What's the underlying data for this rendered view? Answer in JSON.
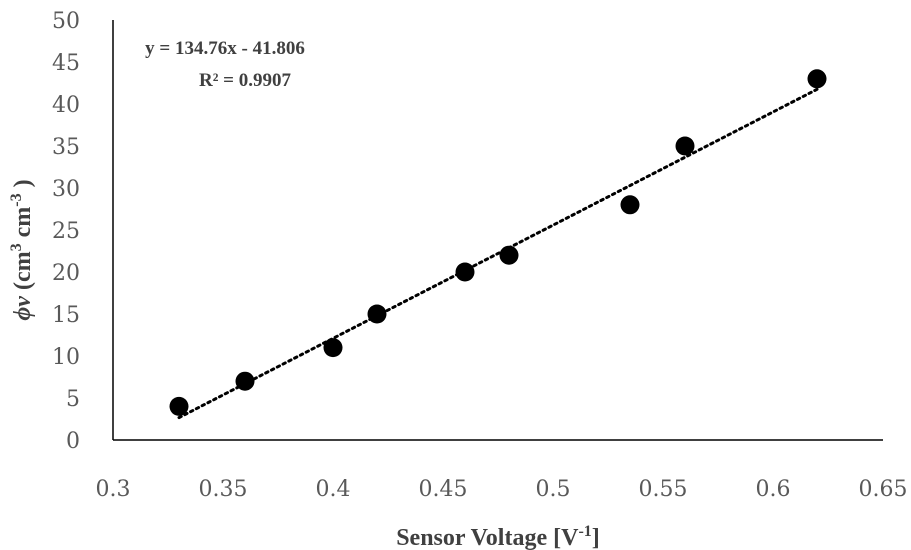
{
  "chart_data": {
    "type": "scatter",
    "xlabel": {
      "base": "Sensor Voltage [V",
      "sup": "-1",
      "end": "]"
    },
    "ylabel": {
      "sym": "ϕv",
      "a": " (cm",
      "s1": "3",
      "b": " cm",
      "s2": "-3",
      "c": " )"
    },
    "xlim": [
      0.3,
      0.65
    ],
    "ylim": [
      0,
      50
    ],
    "xticks": [
      0.3,
      0.35,
      0.4,
      0.45,
      0.5,
      0.55,
      0.6,
      0.65
    ],
    "xtick_labels": [
      "0.3",
      "0.35",
      "0.4",
      "0.45",
      "0.5",
      "0.55",
      "0.6",
      "0.65"
    ],
    "yticks": [
      0,
      5,
      10,
      15,
      20,
      25,
      30,
      35,
      40,
      45,
      50
    ],
    "ytick_labels": [
      "0",
      "5",
      "10",
      "15",
      "20",
      "25",
      "30",
      "35",
      "40",
      "45",
      "50"
    ],
    "grid": false,
    "series": [
      {
        "x": [
          0.33,
          0.36,
          0.4,
          0.42,
          0.46,
          0.48,
          0.535,
          0.56,
          0.62
        ],
        "y": [
          4,
          7,
          11,
          15,
          20,
          22,
          28,
          35,
          43
        ],
        "color": "#000000"
      }
    ],
    "trendline": {
      "type": "linear",
      "slope": 134.76,
      "intercept": -41.806,
      "x_range": [
        0.33,
        0.62
      ],
      "style": "dotted",
      "color": "#000000",
      "equation_label": "y = 134.76x - 41.806",
      "r2_label": "R² = 0.9907"
    }
  }
}
